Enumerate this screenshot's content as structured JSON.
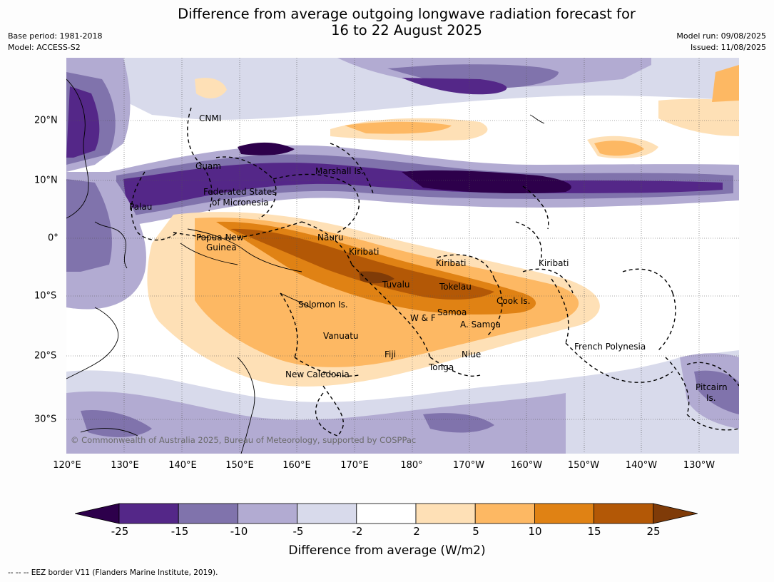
{
  "title_line1": "Difference from average outgoing longwave radiation forecast for",
  "title_line2": "16 to 22 August 2025",
  "meta_left": {
    "base_period": "Base period: 1981-2018",
    "model": "Model: ACCESS-S2"
  },
  "meta_right": {
    "model_run": "Model run: 09/08/2025",
    "issued": "Issued: 11/08/2025"
  },
  "lon_labels": [
    "120°E",
    "130°E",
    "140°E",
    "150°E",
    "160°E",
    "170°E",
    "180°",
    "170°W",
    "160°W",
    "150°W",
    "140°W",
    "130°W"
  ],
  "lat_labels": [
    "20°N",
    "10°N",
    "0°",
    "10°S",
    "20°S",
    "30°S"
  ],
  "places": {
    "cnmi": "CNMI",
    "guam": "Guam",
    "marshall": "Marshall Is.",
    "fsm_1": "Federated States",
    "fsm_2": "of Micronesia",
    "palau": "Palau",
    "png_1": "Papua New",
    "png_2": "Guinea",
    "nauru": "Nauru",
    "kiribati_w": "Kiribati",
    "kiribati_c": "Kiribati",
    "kiribati_e": "Kiribati",
    "tuvalu": "Tuvalu",
    "tokelau": "Tokelau",
    "cook": "Cook Is.",
    "solomon": "Solomon Is.",
    "samoa": "Samoa",
    "wf": "W & F",
    "asamoa": "A. Samoa",
    "vanuatu": "Vanuatu",
    "fiji": "Fiji",
    "niue": "Niue",
    "tonga": "Tonga",
    "frpoly": "French Polynesia",
    "newcal": "New Caledonia",
    "pitcairn_1": "Pitcairn",
    "pitcairn_2": "Is."
  },
  "copyright": "© Commonwealth of Australia 2025, Bureau of Meteorology, supported by COSPPac",
  "colorbar": {
    "colors": [
      "#2d004b",
      "#542788",
      "#8073ac",
      "#b2abd2",
      "#d8daeb",
      "#ffffff",
      "#fee0b6",
      "#fdb863",
      "#e08214",
      "#b35806",
      "#7f3b08"
    ],
    "tick_labels": [
      "-25",
      "-15",
      "-10",
      "-5",
      "-2",
      "2",
      "5",
      "10",
      "15",
      "25"
    ],
    "title": "Difference from average (W/m2)"
  },
  "footnote": "--  --  -- EEZ border V11 (Flanders Marine Institute, 2019)."
}
